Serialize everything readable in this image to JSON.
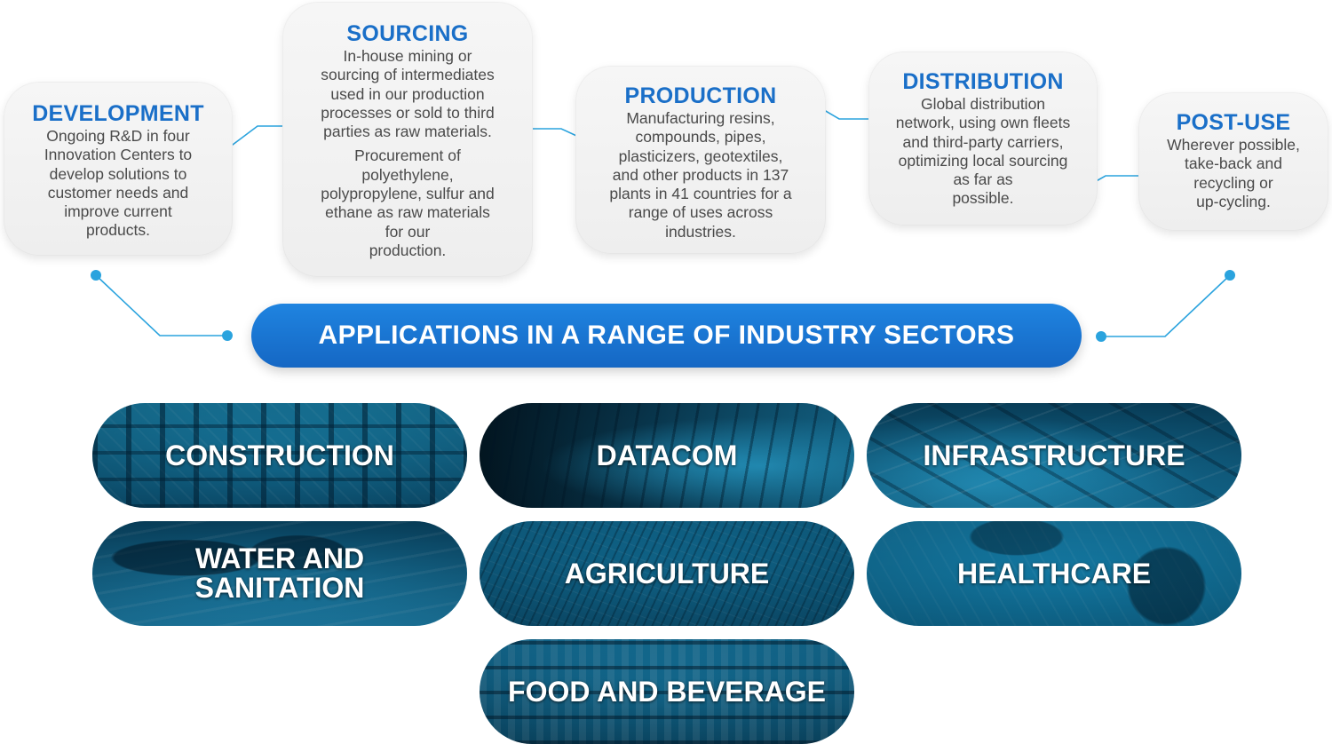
{
  "colors": {
    "heading_blue": "#1a6fc8",
    "connector_blue": "#2aa3de",
    "banner_blue": "#1a78d4",
    "body_text": "#4a4a4a"
  },
  "stages": {
    "development": {
      "title": "DEVELOPMENT",
      "text": [
        "Ongoing R&D in four",
        "Innovation Centers to",
        "develop solutions to",
        "customer needs and",
        "improve current",
        "products."
      ]
    },
    "sourcing": {
      "title": "SOURCING",
      "text1": [
        "In-house mining or",
        "sourcing of intermediates",
        "used in our production",
        "processes or sold to third",
        "parties as raw materials."
      ],
      "text2": [
        "Procurement of",
        "polyethylene,",
        "polypropylene, sulfur and",
        "ethane as raw materials",
        "for our",
        "production."
      ]
    },
    "production": {
      "title": "PRODUCTION",
      "text": [
        "Manufacturing resins,",
        "compounds, pipes,",
        "plasticizers, geotextiles,",
        "and other products in 137",
        "plants in 41 countries for a",
        "range of uses across",
        "industries."
      ]
    },
    "distribution": {
      "title": "DISTRIBUTION",
      "text": [
        "Global distribution",
        "network, using own fleets",
        "and third-party carriers,",
        "optimizing local sourcing",
        "as far as",
        "possible."
      ]
    },
    "post_use": {
      "title": "POST-USE",
      "text": [
        "Wherever possible,",
        "take-back and",
        "recycling or",
        "up-cycling."
      ]
    }
  },
  "banner": {
    "label": "APPLICATIONS IN A RANGE OF INDUSTRY SECTORS"
  },
  "sectors": {
    "construction": "CONSTRUCTION",
    "datacom": "DATACOM",
    "infrastructure": "INFRASTRUCTURE",
    "water": [
      "WATER AND",
      "SANITATION"
    ],
    "agriculture": "AGRICULTURE",
    "healthcare": "HEALTHCARE",
    "food": "FOOD AND BEVERAGE"
  }
}
